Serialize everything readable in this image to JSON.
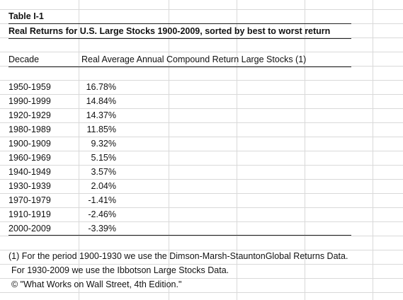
{
  "table": {
    "label": "Table I-1",
    "title": "Real Returns for U.S. Large Stocks 1900-2009, sorted by best to worst return",
    "headers": {
      "decade": "Decade",
      "return": "Real Average Annual Compound Return Large Stocks (1)"
    },
    "rows": [
      {
        "decade": "1950-1959",
        "return": "16.78%"
      },
      {
        "decade": "1990-1999",
        "return": "14.84%"
      },
      {
        "decade": "1920-1929",
        "return": "14.37%"
      },
      {
        "decade": "1980-1989",
        "return": "11.85%"
      },
      {
        "decade": "1900-1909",
        "return": "9.32%"
      },
      {
        "decade": "1960-1969",
        "return": "5.15%"
      },
      {
        "decade": "1940-1949",
        "return": "3.57%"
      },
      {
        "decade": "1930-1939",
        "return": "2.04%"
      },
      {
        "decade": "1970-1979",
        "return": "-1.41%"
      },
      {
        "decade": "1910-1919",
        "return": "-2.46%"
      },
      {
        "decade": "2000-2009",
        "return": "-3.39%"
      }
    ]
  },
  "notes": [
    "(1) For the period 1900-1930 we use the Dimson-Marsh-StauntonGlobal Returns Data.",
    "For 1930-2009 we use the Ibbotson Large Stocks Data.",
    "© \"What Works on Wall Street, 4th Edition.\""
  ]
}
